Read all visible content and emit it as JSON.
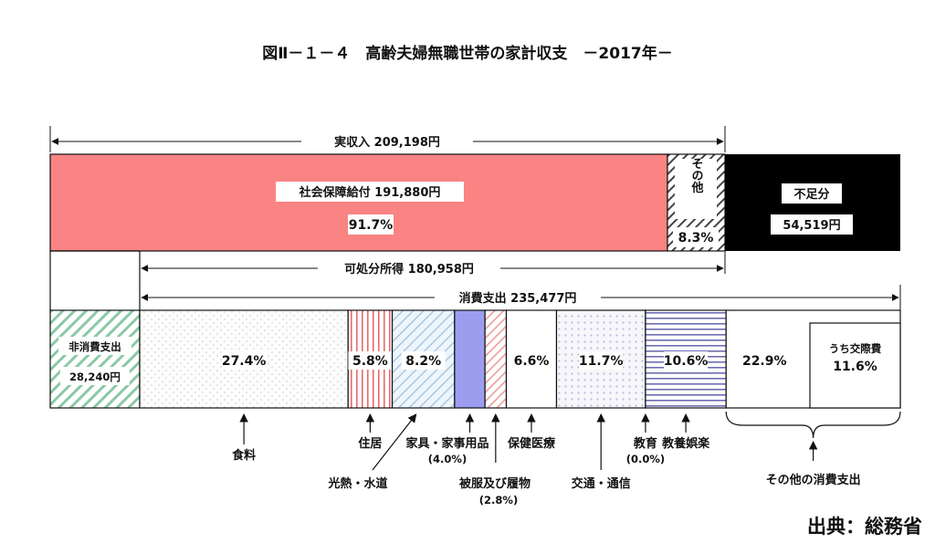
{
  "title": "図Ⅱ－１－４　高齢夫婦無職世帯の家計収支　－2017年－",
  "source": "出典：総務省",
  "colors": {
    "social_security": "#fa8383",
    "shortfall": "#000000",
    "other_income_hatch": "#444444"
  },
  "chart_data": {
    "type": "bar",
    "income": {
      "total_label": "実収入",
      "total_value": "209,198円",
      "segments": [
        {
          "name": "社会保障給付",
          "value": "191,880円",
          "pct_label": "91.7%",
          "pct": 91.7
        },
        {
          "name": "その他",
          "pct_label": "8.3%",
          "pct": 8.3
        }
      ],
      "shortfall": {
        "name": "不足分",
        "value": "54,519円"
      }
    },
    "disposable_income": {
      "label": "可処分所得",
      "value": "180,958円"
    },
    "consumption_total": {
      "label": "消費支出",
      "value": "235,477円"
    },
    "non_consumption": {
      "label": "非消費支出",
      "value": "28,240円"
    },
    "consumption_categories": [
      {
        "name": "食料",
        "pct_label": "27.4%",
        "pct": 27.4
      },
      {
        "name": "住居",
        "pct_label": "5.8%",
        "pct": 5.8
      },
      {
        "name": "光熱・水道",
        "pct_label": "8.2%",
        "pct": 8.2
      },
      {
        "name": "家具・家事用品",
        "pct_label": "(4.0%)",
        "pct": 4.0
      },
      {
        "name": "被服及び履物",
        "pct_label": "(2.8%)",
        "pct": 2.8
      },
      {
        "name": "保健医療",
        "pct_label": "6.6%",
        "pct": 6.6
      },
      {
        "name": "交通・通信",
        "pct_label": "11.7%",
        "pct": 11.7
      },
      {
        "name": "教育",
        "pct_label": "(0.0%)",
        "pct": 0.0
      },
      {
        "name": "教養娯楽",
        "pct_label": "10.6%",
        "pct": 10.6
      },
      {
        "name": "その他の消費支出",
        "pct_label": "22.9%",
        "pct": 22.9
      }
    ],
    "other_breakdown": {
      "name": "うち交際費",
      "pct_label": "11.6%",
      "pct": 11.6
    }
  }
}
